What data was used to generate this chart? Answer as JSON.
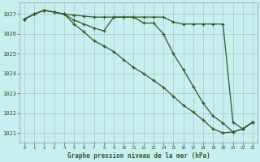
{
  "background_color": "#c8eef0",
  "grid_color": "#b0b0b0",
  "line_color": "#2d5a27",
  "title": "Graphe pression niveau de la mer (hPa)",
  "xlim": [
    -0.5,
    23.5
  ],
  "ylim": [
    1020.5,
    1027.6
  ],
  "yticks": [
    1021,
    1022,
    1023,
    1024,
    1025,
    1026,
    1027
  ],
  "xticks": [
    0,
    1,
    2,
    3,
    4,
    5,
    6,
    7,
    8,
    9,
    10,
    11,
    12,
    13,
    14,
    15,
    16,
    17,
    18,
    19,
    20,
    21,
    22,
    23
  ],
  "series1_x": [
    0,
    1,
    2,
    3,
    4,
    5,
    6,
    7,
    8,
    9,
    10,
    11,
    12,
    13,
    14,
    15,
    16,
    17,
    18,
    19,
    20,
    21,
    22,
    23
  ],
  "series1_y": [
    1026.75,
    1027.0,
    1027.2,
    1027.1,
    1027.0,
    1026.95,
    1026.9,
    1026.85,
    1026.85,
    1026.85,
    1026.85,
    1026.85,
    1026.85,
    1026.85,
    1026.85,
    1026.6,
    1026.5,
    1026.5,
    1026.5,
    1026.5,
    1026.5,
    1021.55,
    1021.2,
    1021.55
  ],
  "series2_x": [
    0,
    1,
    2,
    3,
    4,
    5,
    6,
    7,
    8,
    9,
    10,
    11,
    12,
    13,
    14,
    15,
    16,
    17,
    18,
    19,
    20,
    21,
    22,
    23
  ],
  "series2_y": [
    1026.75,
    1027.0,
    1027.2,
    1027.1,
    1027.0,
    1026.7,
    1026.5,
    1026.3,
    1026.15,
    1026.85,
    1026.85,
    1026.85,
    1026.55,
    1026.55,
    1026.0,
    1025.0,
    1024.2,
    1023.35,
    1022.5,
    1021.85,
    1021.5,
    1021.05,
    1021.2,
    1021.55
  ],
  "series3_x": [
    0,
    1,
    2,
    3,
    4,
    5,
    6,
    7,
    8,
    9,
    10,
    11,
    12,
    13,
    14,
    15,
    16,
    17,
    18,
    19,
    20,
    21,
    22,
    23
  ],
  "series3_y": [
    1026.75,
    1027.0,
    1027.2,
    1027.1,
    1027.0,
    1026.5,
    1026.1,
    1025.65,
    1025.4,
    1025.1,
    1024.7,
    1024.3,
    1024.0,
    1023.65,
    1023.3,
    1022.85,
    1022.4,
    1022.05,
    1021.65,
    1021.2,
    1021.0,
    1021.05,
    1021.2,
    1021.55
  ]
}
